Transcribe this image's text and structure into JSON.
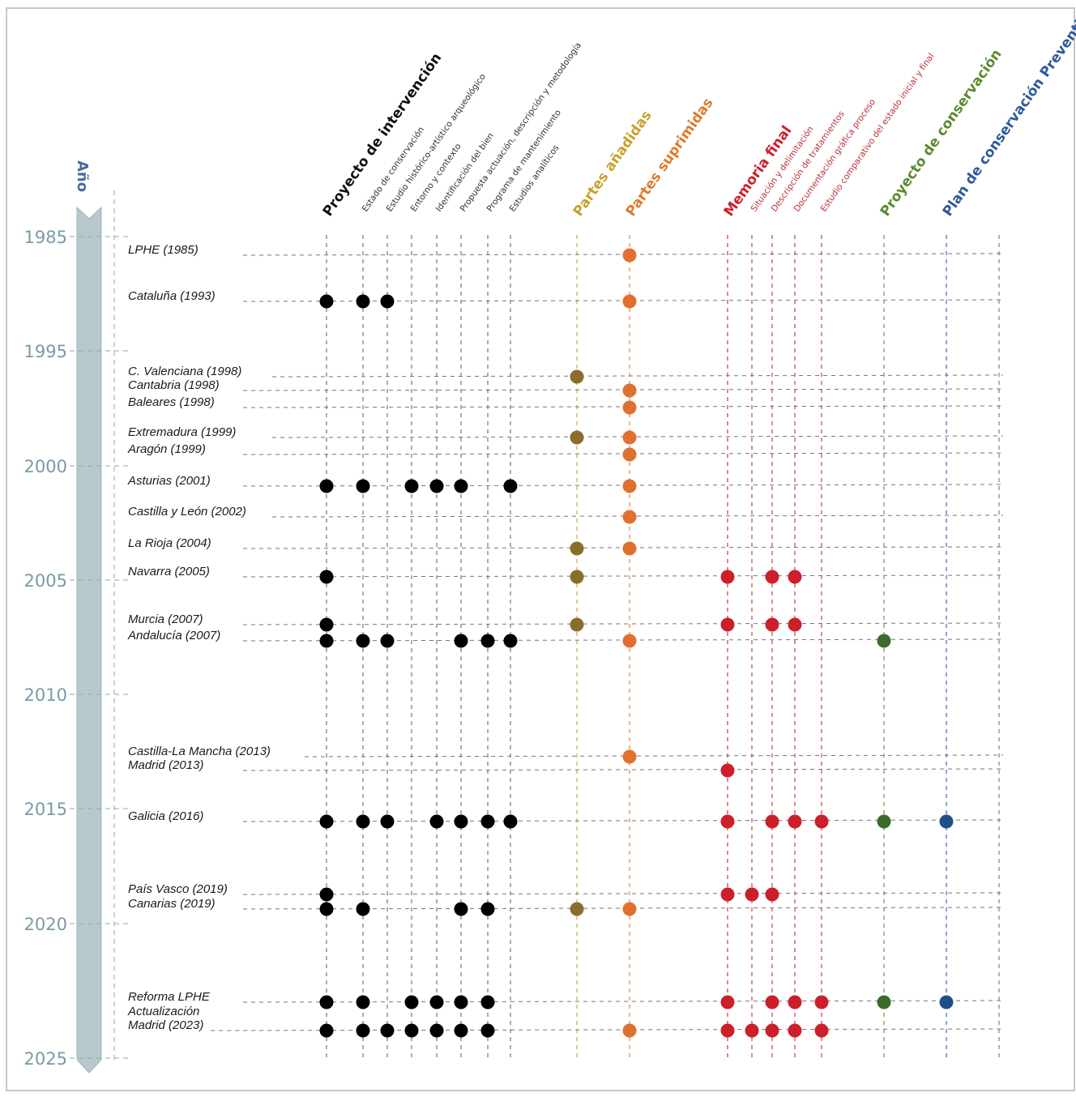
{
  "chart_data": {
    "type": "scatter",
    "axis_title": "Año",
    "year_ticks": [
      "1985",
      "1995",
      "2000",
      "2005",
      "2010",
      "2015",
      "2020",
      "2025"
    ],
    "columns": [
      {
        "id": "pi",
        "label": "Proyecto de intervención",
        "color": "#111111",
        "group": "main"
      },
      {
        "id": "ec",
        "label": "Estado de conservación",
        "color": "#333333",
        "group": "sub"
      },
      {
        "id": "eh",
        "label": "Estudio histórico-artístico arqueológico",
        "color": "#333333",
        "group": "sub"
      },
      {
        "id": "en",
        "label": "Entorno y contexto",
        "color": "#333333",
        "group": "sub"
      },
      {
        "id": "ib",
        "label": "Identificación del bien",
        "color": "#333333",
        "group": "sub"
      },
      {
        "id": "pa",
        "label": "Propuesta actuación, descripción y metodología",
        "color": "#333333",
        "group": "sub"
      },
      {
        "id": "pm",
        "label": "Programa de mantenimiento",
        "color": "#333333",
        "group": "sub"
      },
      {
        "id": "ea",
        "label": "Estudios analíticos",
        "color": "#333333",
        "group": "sub"
      },
      {
        "id": "pan",
        "label": "Partes añadidas",
        "color": "#c8a02a",
        "group": "main"
      },
      {
        "id": "psu",
        "label": "Partes suprimidas",
        "color": "#e07a2a",
        "group": "main"
      },
      {
        "id": "mf",
        "label": "Memoria final",
        "color": "#cc1f2a",
        "group": "main"
      },
      {
        "id": "sd",
        "label": "Situación y delimitación",
        "color": "#b8323a",
        "group": "sub"
      },
      {
        "id": "dt",
        "label": "Descripción de tratamientos",
        "color": "#b8323a",
        "group": "sub"
      },
      {
        "id": "dg",
        "label": "Documentación gráfica proceso",
        "color": "#b8323a",
        "group": "sub"
      },
      {
        "id": "ece",
        "label": "Estudio comparativo del estado inicial y final",
        "color": "#b8323a",
        "group": "sub"
      },
      {
        "id": "pc",
        "label": "Proyecto de conservación",
        "color": "#5b8a2e",
        "group": "main"
      },
      {
        "id": "pcp",
        "label": "Plan de conservación Preventiva",
        "color": "#2e5a9c",
        "group": "main"
      }
    ],
    "rows": [
      {
        "label": "LPHE (1985)",
        "dots": [
          "psu"
        ]
      },
      {
        "label": "Cataluña (1993)",
        "dots": [
          "pi",
          "ec",
          "eh",
          "psu"
        ]
      },
      {
        "label": "C. Valenciana (1998)",
        "dots": [
          "pan"
        ]
      },
      {
        "label": "Cantabria (1998)",
        "dots": [
          "psu"
        ]
      },
      {
        "label": "Baleares (1998)",
        "dots": [
          "psu"
        ]
      },
      {
        "label": "Extremadura (1999)",
        "dots": [
          "pan",
          "psu"
        ]
      },
      {
        "label": "Aragón (1999)",
        "dots": [
          "psu"
        ]
      },
      {
        "label": "Asturias (2001)",
        "dots": [
          "pi",
          "ec",
          "en",
          "ib",
          "pa",
          "ea",
          "psu"
        ]
      },
      {
        "label": "Castilla y León (2002)",
        "dots": [
          "psu"
        ]
      },
      {
        "label": "La Rioja (2004)",
        "dots": [
          "pan",
          "psu"
        ]
      },
      {
        "label": "Navarra (2005)",
        "dots": [
          "pi",
          "pan",
          "mf",
          "dt",
          "dg"
        ]
      },
      {
        "label": "Murcia (2007)",
        "dots": [
          "pi",
          "pan",
          "mf",
          "dt",
          "dg"
        ]
      },
      {
        "label": "Andalucía (2007)",
        "dots": [
          "pi",
          "ec",
          "eh",
          "pa",
          "pm",
          "ea",
          "psu",
          "pc"
        ]
      },
      {
        "label": "Castilla-La Mancha (2013)",
        "dots": [
          "psu"
        ]
      },
      {
        "label": "Madrid (2013)",
        "dots": [
          "mf"
        ]
      },
      {
        "label": "Galicia (2016)",
        "dots": [
          "pi",
          "ec",
          "eh",
          "ib",
          "pa",
          "pm",
          "ea",
          "mf",
          "dt",
          "dg",
          "ece",
          "pc",
          "pcp"
        ]
      },
      {
        "label": "País Vasco (2019)",
        "dots": [
          "pi",
          "mf",
          "sd",
          "dt"
        ]
      },
      {
        "label": "Canarias (2019)",
        "dots": [
          "pi",
          "ec",
          "pa",
          "pm",
          "pan",
          "psu"
        ]
      },
      {
        "label": "Reforma LPHE",
        "dots": [
          "pi",
          "ec",
          "en",
          "ib",
          "pa",
          "pm",
          "mf",
          "dt",
          "dg",
          "ece",
          "pc",
          "pcp"
        ]
      },
      {
        "label": "Actualización",
        "dots": []
      },
      {
        "label": "Madrid (2023)",
        "dots": [
          "pi",
          "ec",
          "eh",
          "en",
          "ib",
          "pa",
          "pm",
          "psu",
          "mf",
          "sd",
          "dt",
          "dg",
          "ece"
        ]
      }
    ],
    "grid": "dashed"
  }
}
